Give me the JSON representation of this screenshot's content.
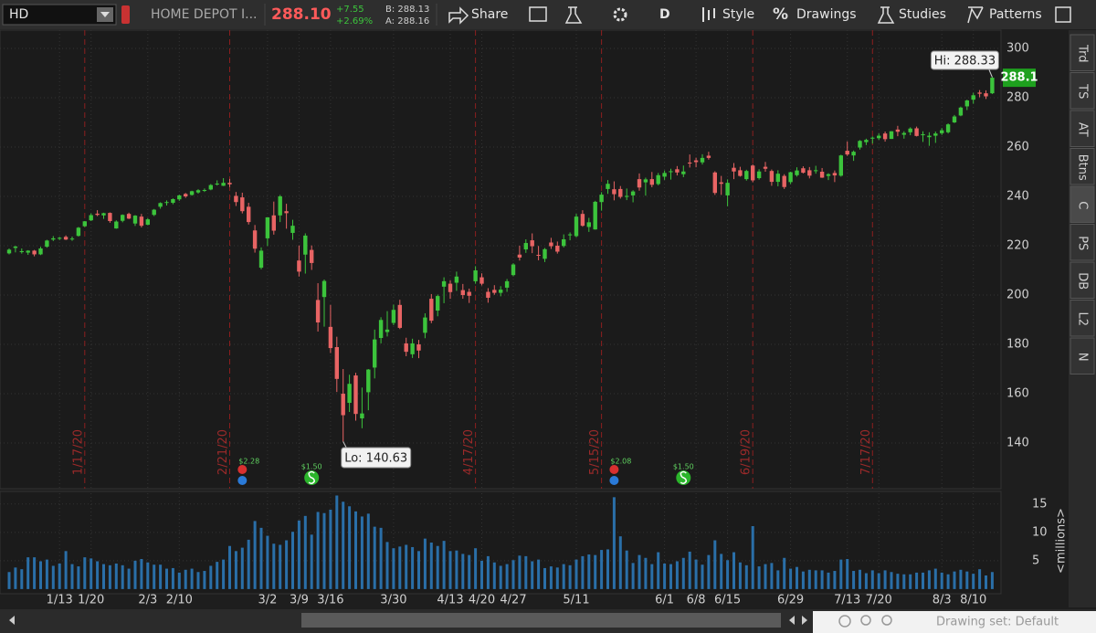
{
  "toolbar": {
    "symbol": "HD",
    "description": "HOME DEPOT I...",
    "last": "288.10",
    "change": "+7.55",
    "change_pct": "+2.69%",
    "bid": "B: 288.13",
    "ask": "A: 288.16",
    "buttons": [
      "Share",
      "D",
      "Style",
      "Drawings",
      "Studies",
      "Patterns"
    ]
  },
  "side_tabs": [
    "Trd",
    "TS",
    "AT",
    "Btns",
    "C",
    "PS",
    "DB",
    "L2",
    "N"
  ],
  "footer": {
    "drawing_set": "Drawing set: Default"
  },
  "chart_data": [
    {
      "type": "candlestick",
      "up_color": "#3cc43c",
      "down_color": "#e86464",
      "grid": true,
      "x": [
        "12/31",
        "1/2",
        "1/3",
        "1/6",
        "1/7",
        "1/8",
        "1/9",
        "1/10",
        "1/13",
        "1/14",
        "1/15",
        "1/16",
        "1/17",
        "1/21",
        "1/22",
        "1/23",
        "1/24",
        "1/27",
        "1/28",
        "1/29",
        "1/30",
        "1/31",
        "2/3",
        "2/4",
        "2/5",
        "2/6",
        "2/7",
        "2/10",
        "2/11",
        "2/12",
        "2/13",
        "2/14",
        "2/18",
        "2/19",
        "2/20",
        "2/21",
        "2/24",
        "2/25",
        "2/26",
        "2/27",
        "2/28",
        "3/2",
        "3/3",
        "3/4",
        "3/5",
        "3/6",
        "3/9",
        "3/10",
        "3/11",
        "3/12",
        "3/13",
        "3/16",
        "3/17",
        "3/18",
        "3/19",
        "3/20",
        "3/23",
        "3/24",
        "3/25",
        "3/26",
        "3/27",
        "3/30",
        "3/31",
        "4/1",
        "4/2",
        "4/3",
        "4/6",
        "4/7",
        "4/8",
        "4/9",
        "4/13",
        "4/14",
        "4/15",
        "4/16",
        "4/17",
        "4/20",
        "4/21",
        "4/22",
        "4/23",
        "4/24",
        "4/27",
        "4/28",
        "4/29",
        "4/30",
        "5/1",
        "5/4",
        "5/5",
        "5/6",
        "5/7",
        "5/8",
        "5/11",
        "5/12",
        "5/13",
        "5/14",
        "5/15",
        "5/18",
        "5/19",
        "5/20",
        "5/21",
        "5/22",
        "5/26",
        "5/27",
        "5/28",
        "5/29",
        "6/1",
        "6/2",
        "6/3",
        "6/4",
        "6/5",
        "6/8",
        "6/9",
        "6/10",
        "6/11",
        "6/12",
        "6/15",
        "6/16",
        "6/17",
        "6/18",
        "6/19",
        "6/22",
        "6/23",
        "6/24",
        "6/25",
        "6/26",
        "6/29",
        "6/30",
        "7/1",
        "7/2",
        "7/6",
        "7/7",
        "7/8",
        "7/9",
        "7/10",
        "7/13",
        "7/14",
        "7/15",
        "7/16",
        "7/17",
        "7/20",
        "7/21",
        "7/22",
        "7/23",
        "7/24",
        "7/27",
        "7/28",
        "7/29",
        "7/30",
        "7/31",
        "8/3",
        "8/4",
        "8/5",
        "8/6",
        "8/7",
        "8/10",
        "8/11",
        "8/12",
        "8/13"
      ],
      "open": [
        216.9,
        219.1,
        217.4,
        217.2,
        218.0,
        216.5,
        219.6,
        222.5,
        223.1,
        223.6,
        222.9,
        224.0,
        227.9,
        230.3,
        233.0,
        232.3,
        233.3,
        227.0,
        230.1,
        232.9,
        229.0,
        231.8,
        228.5,
        232.5,
        235.8,
        237.7,
        237.4,
        238.8,
        241.0,
        240.6,
        241.6,
        242.6,
        242.8,
        244.9,
        244.3,
        245.5,
        240.2,
        239.6,
        235.8,
        226.2,
        211.1,
        223.0,
        232.3,
        232.3,
        234.0,
        225.2,
        214.0,
        216.4,
        218.3,
        198.0,
        199.2,
        187.1,
        178.9,
        160.0,
        156.3,
        167.4,
        150.0,
        160.6,
        170.6,
        182.6,
        185.0,
        188.7,
        196.0,
        180.4,
        176.0,
        180.0,
        184.7,
        198.5,
        193.7,
        203.4,
        204.6,
        205.0,
        202.0,
        201.3,
        205.6,
        207.2,
        201.3,
        202.1,
        200.9,
        203.0,
        208.1,
        216.4,
        218.5,
        222.2,
        216.3,
        214.7,
        221.3,
        220.0,
        219.9,
        224.5,
        223.9,
        232.9,
        227.6,
        226.6,
        237.7,
        243.0,
        242.9,
        243.0,
        239.8,
        240.4,
        247.0,
        245.7,
        247.0,
        245.0,
        248.0,
        250.0,
        251.0,
        249.0,
        253.7,
        254.6,
        253.8,
        256.5,
        249.7,
        245.7,
        240.4,
        251.6,
        250.6,
        247.0,
        252.5,
        247.4,
        252.0,
        250.3,
        245.9,
        248.3,
        245.8,
        248.6,
        251.4,
        250.6,
        250.5,
        250.0,
        248.3,
        249.5,
        248.4,
        258.5,
        256.6,
        259.8,
        262.0,
        263.5,
        263.6,
        265.5,
        263.3,
        267.1,
        265.0,
        266.0,
        267.6,
        264.8,
        264.0,
        264.6,
        265.6,
        266.0,
        270.0,
        272.8,
        276.5,
        279.2,
        282.1,
        281.8,
        281.8
      ],
      "high": [
        218.9,
        219.9,
        218.9,
        218.2,
        218.3,
        219.6,
        222.4,
        223.9,
        223.6,
        224.2,
        223.7,
        227.6,
        230.0,
        233.1,
        234.4,
        233.4,
        233.5,
        230.3,
        232.7,
        233.4,
        232.4,
        232.9,
        231.2,
        234.9,
        237.6,
        238.4,
        239.2,
        240.7,
        241.4,
        242.3,
        242.9,
        243.2,
        245.0,
        246.5,
        247.4,
        247.1,
        241.8,
        241.5,
        237.4,
        228.4,
        219.3,
        231.5,
        237.9,
        240.6,
        237.0,
        230.5,
        220.1,
        225.0,
        220.1,
        204.8,
        206.3,
        196.0,
        183.1,
        170.0,
        167.7,
        168.5,
        162.5,
        170.0,
        186.0,
        191.0,
        193.5,
        196.1,
        198.1,
        182.7,
        182.3,
        181.8,
        192.6,
        200.4,
        200.2,
        207.2,
        206.0,
        209.5,
        204.5,
        202.6,
        211.7,
        208.8,
        202.8,
        204.0,
        203.6,
        206.5,
        212.9,
        220.0,
        222.6,
        225.0,
        219.9,
        219.1,
        223.2,
        221.7,
        224.6,
        225.4,
        232.9,
        234.4,
        231.3,
        238.2,
        241.7,
        246.6,
        246.1,
        244.2,
        243.2,
        242.5,
        249.3,
        247.6,
        249.9,
        249.5,
        250.5,
        251.2,
        252.3,
        252.5,
        257.0,
        255.7,
        257.1,
        258.1,
        250.2,
        248.3,
        246.9,
        253.5,
        252.0,
        250.8,
        253.0,
        251.0,
        254.0,
        250.9,
        250.6,
        249.0,
        250.0,
        251.8,
        252.2,
        251.9,
        252.4,
        251.5,
        249.4,
        250.5,
        256.9,
        262.3,
        258.6,
        262.8,
        263.4,
        264.3,
        265.5,
        266.3,
        266.5,
        268.6,
        266.4,
        268.0,
        268.3,
        266.4,
        266.0,
        266.3,
        267.7,
        269.6,
        273.0,
        276.4,
        279.2,
        282.0,
        283.1,
        283.0,
        288.33
      ],
      "low": [
        216.5,
        217.3,
        216.8,
        216.3,
        215.7,
        216.2,
        219.2,
        221.9,
        222.3,
        222.3,
        222.0,
        223.7,
        227.6,
        230.0,
        232.0,
        230.9,
        229.3,
        226.9,
        229.5,
        230.8,
        228.0,
        227.4,
        228.3,
        232.0,
        235.0,
        236.3,
        236.8,
        238.2,
        239.4,
        240.3,
        241.1,
        241.8,
        242.5,
        244.4,
        244.2,
        243.8,
        236.1,
        233.1,
        228.6,
        217.2,
        210.4,
        219.9,
        224.5,
        229.6,
        226.9,
        222.4,
        207.5,
        208.7,
        210.2,
        185.2,
        187.2,
        176.5,
        160.7,
        140.63,
        152.6,
        149.1,
        146.0,
        153.3,
        166.2,
        180.4,
        183.2,
        187.8,
        186.2,
        175.2,
        174.5,
        174.4,
        182.5,
        188.6,
        191.4,
        196.7,
        198.5,
        201.7,
        198.5,
        196.8,
        204.6,
        203.9,
        196.9,
        200.1,
        199.5,
        201.3,
        207.6,
        214.0,
        217.1,
        217.0,
        214.1,
        213.4,
        218.7,
        216.8,
        219.3,
        222.2,
        223.4,
        227.7,
        225.6,
        226.5,
        234.2,
        241.0,
        238.4,
        239.1,
        238.5,
        237.6,
        242.3,
        240.3,
        243.7,
        244.5,
        246.7,
        246.8,
        248.5,
        247.8,
        251.7,
        251.8,
        252.9,
        254.9,
        240.6,
        240.6,
        236.0,
        247.0,
        248.0,
        246.4,
        245.7,
        246.8,
        250.0,
        244.3,
        244.1,
        243.0,
        245.0,
        248.0,
        249.3,
        247.3,
        249.2,
        247.5,
        246.6,
        245.8,
        248.0,
        256.4,
        254.4,
        259.0,
        260.8,
        261.4,
        262.9,
        262.2,
        263.3,
        264.4,
        263.4,
        264.8,
        264.3,
        262.1,
        260.5,
        261.7,
        264.9,
        265.5,
        269.7,
        272.5,
        275.0,
        277.6,
        280.2,
        279.5,
        281.5
      ],
      "close": [
        218.4,
        219.7,
        217.8,
        218.0,
        216.5,
        218.9,
        222.1,
        223.0,
        223.2,
        222.5,
        222.9,
        227.3,
        229.9,
        232.4,
        232.5,
        233.2,
        230.0,
        229.8,
        232.5,
        231.0,
        232.2,
        228.1,
        230.7,
        234.6,
        237.3,
        237.7,
        238.9,
        240.4,
        240.0,
        242.1,
        242.5,
        242.6,
        244.6,
        245.2,
        245.5,
        244.9,
        237.7,
        234.0,
        229.6,
        218.8,
        218.0,
        231.5,
        226.1,
        240.0,
        233.2,
        228.1,
        209.5,
        224.1,
        213.0,
        188.9,
        205.7,
        178.5,
        166.0,
        151.3,
        164.0,
        151.8,
        152.0,
        169.8,
        182.0,
        189.9,
        186.0,
        194.0,
        186.7,
        177.0,
        180.4,
        177.5,
        190.9,
        189.6,
        199.6,
        205.6,
        201.2,
        207.5,
        200.0,
        199.7,
        210.0,
        204.6,
        198.9,
        200.9,
        202.2,
        205.6,
        212.4,
        215.2,
        221.1,
        219.8,
        216.0,
        218.6,
        219.8,
        217.6,
        222.6,
        224.6,
        231.8,
        228.1,
        229.5,
        237.8,
        240.7,
        245.1,
        240.9,
        239.8,
        240.2,
        242.0,
        243.6,
        246.9,
        244.7,
        248.6,
        249.5,
        250.2,
        249.7,
        250.1,
        253.5,
        253.9,
        255.6,
        255.6,
        241.4,
        245.1,
        245.5,
        250.1,
        248.3,
        250.3,
        246.5,
        250.1,
        251.2,
        245.9,
        249.2,
        243.8,
        249.8,
        250.5,
        249.6,
        248.4,
        250.6,
        247.6,
        249.0,
        248.5,
        256.6,
        257.0,
        258.1,
        262.5,
        262.9,
        263.8,
        264.6,
        263.2,
        266.4,
        266.2,
        265.7,
        267.5,
        264.5,
        265.2,
        264.6,
        265.5,
        266.8,
        269.2,
        272.4,
        276.0,
        278.9,
        281.0,
        281.6,
        280.55,
        288.1
      ],
      "ylim": [
        121.5,
        307.4
      ],
      "yticks": [
        140,
        160,
        180,
        200,
        220,
        240,
        260,
        280,
        300
      ],
      "xticks": [
        "1/13",
        {
          "value": "1/21",
          "label": "1/20"
        },
        "2/3",
        "2/10",
        "3/2",
        "3/9",
        "3/16",
        "3/30",
        "4/13",
        "4/20",
        "4/27",
        "5/11",
        "6/1",
        "6/8",
        "6/15",
        "6/29",
        "7/13",
        "7/20",
        "8/3",
        "8/10"
      ],
      "events": [
        {
          "date": "1/17",
          "label": "1/17/20"
        },
        {
          "date": "2/21",
          "label": "2/21/20"
        },
        {
          "date": "4/17",
          "label": "4/17/20"
        },
        {
          "date": "5/15",
          "label": "5/15/20"
        },
        {
          "date": "6/19",
          "label": "6/19/20"
        },
        {
          "date": "7/17",
          "label": "7/17/20"
        }
      ],
      "earnings": [
        {
          "date": "2/25",
          "label": "$2.28"
        },
        {
          "date": "5/19",
          "label": "$2.08"
        }
      ],
      "dividends": [
        {
          "date": "3/11",
          "label": "$1.50"
        },
        {
          "date": "6/4",
          "label": "$1.50"
        }
      ],
      "hi": {
        "value": 288.33,
        "label": "Hi: 288.33"
      },
      "lo": {
        "value": 140.63,
        "label": "Lo: 140.63"
      },
      "last_price": 288.1
    },
    {
      "type": "bar",
      "color": "#2a6fa8",
      "y_label": "<millions>",
      "values": [
        3.0,
        3.8,
        3.5,
        5.6,
        5.6,
        4.9,
        5.2,
        4.1,
        4.5,
        6.7,
        4.4,
        4.0,
        5.6,
        5.4,
        4.9,
        4.4,
        4.2,
        4.5,
        4.2,
        3.6,
        5.0,
        5.3,
        4.7,
        4.3,
        4.3,
        3.6,
        3.7,
        2.9,
        3.4,
        3.6,
        3.0,
        3.2,
        4.1,
        4.8,
        5.2,
        7.6,
        6.7,
        7.3,
        8.7,
        12.0,
        10.8,
        9.4,
        8.0,
        7.8,
        8.6,
        10.1,
        12.1,
        12.9,
        9.6,
        13.6,
        13.4,
        14.0,
        16.5,
        15.4,
        14.6,
        13.7,
        12.8,
        13.3,
        11.0,
        10.8,
        8.3,
        7.2,
        7.5,
        7.8,
        7.4,
        6.7,
        8.9,
        8.2,
        7.6,
        8.5,
        6.7,
        6.8,
        6.2,
        6.0,
        7.2,
        5.0,
        5.8,
        4.7,
        4.1,
        4.4,
        5.1,
        5.9,
        5.8,
        4.9,
        5.2,
        3.7,
        4.0,
        3.8,
        4.4,
        4.2,
        5.2,
        5.8,
        6.1,
        6.0,
        6.9,
        7.0,
        16.2,
        9.3,
        6.8,
        4.6,
        6.0,
        5.5,
        4.4,
        6.5,
        4.5,
        4.4,
        4.9,
        5.5,
        6.6,
        5.2,
        4.3,
        6.0,
        8.6,
        6.2,
        5.1,
        6.5,
        4.7,
        4.2,
        11.1,
        4.0,
        4.4,
        4.6,
        3.3,
        5.5,
        3.6,
        3.9,
        3.1,
        3.4,
        3.3,
        3.3,
        2.9,
        3.2,
        5.2,
        5.3,
        3.2,
        3.4,
        2.8,
        3.3,
        2.8,
        3.3,
        3.0,
        2.7,
        2.6,
        2.6,
        2.9,
        2.9,
        3.3,
        3.6,
        2.9,
        2.6,
        3.1,
        3.4,
        3.1,
        2.7,
        3.5,
        2.4,
        3.0
      ],
      "ylim": [
        -0.5,
        16.9
      ],
      "yticks": [
        5,
        10,
        15
      ]
    }
  ]
}
